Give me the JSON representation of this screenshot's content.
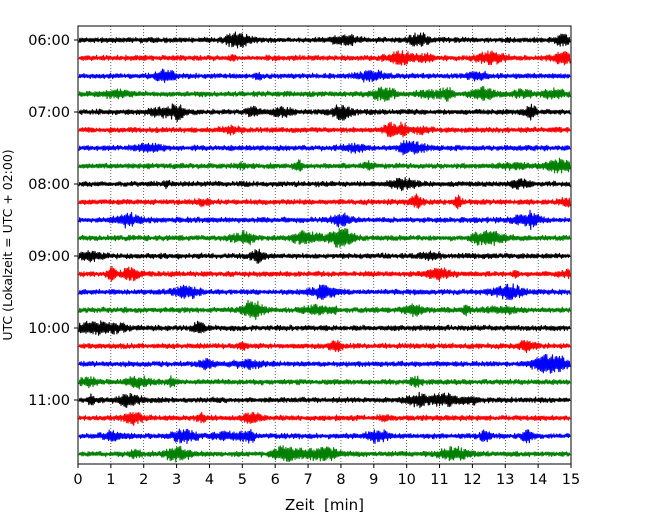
{
  "chart_data": {
    "type": "line",
    "chart_kind": "helicorder seismogram",
    "xlabel": "Zeit  [min]",
    "ylabel": "UTC (Lokalzeit = UTC + 02:00)",
    "xlim": [
      0,
      15
    ],
    "x_ticks": [
      "0",
      "1",
      "2",
      "3",
      "4",
      "5",
      "6",
      "7",
      "8",
      "9",
      "10",
      "11",
      "12",
      "13",
      "14",
      "15"
    ],
    "y_tick_labels": [
      "06:00",
      "07:00",
      "08:00",
      "09:00",
      "10:00",
      "11:00"
    ],
    "x_grid": true,
    "x_grid_style": "dotted",
    "trace_colors": [
      "#000000",
      "#ff0000",
      "#0000ff",
      "#008000"
    ],
    "rows": [
      {
        "start": "06:00",
        "color": "#000000"
      },
      {
        "start": "06:15",
        "color": "#ff0000"
      },
      {
        "start": "06:30",
        "color": "#0000ff"
      },
      {
        "start": "06:45",
        "color": "#008000"
      },
      {
        "start": "07:00",
        "color": "#000000"
      },
      {
        "start": "07:15",
        "color": "#ff0000"
      },
      {
        "start": "07:30",
        "color": "#0000ff"
      },
      {
        "start": "07:45",
        "color": "#008000"
      },
      {
        "start": "08:00",
        "color": "#000000"
      },
      {
        "start": "08:15",
        "color": "#ff0000"
      },
      {
        "start": "08:30",
        "color": "#0000ff"
      },
      {
        "start": "08:45",
        "color": "#008000"
      },
      {
        "start": "09:00",
        "color": "#000000"
      },
      {
        "start": "09:15",
        "color": "#ff0000"
      },
      {
        "start": "09:30",
        "color": "#0000ff"
      },
      {
        "start": "09:45",
        "color": "#008000"
      },
      {
        "start": "10:00",
        "color": "#000000"
      },
      {
        "start": "10:15",
        "color": "#ff0000"
      },
      {
        "start": "10:30",
        "color": "#0000ff"
      },
      {
        "start": "10:45",
        "color": "#008000"
      },
      {
        "start": "11:00",
        "color": "#000000"
      },
      {
        "start": "11:15",
        "color": "#ff0000"
      },
      {
        "start": "11:30",
        "color": "#0000ff"
      },
      {
        "start": "11:45",
        "color": "#008000"
      }
    ]
  }
}
